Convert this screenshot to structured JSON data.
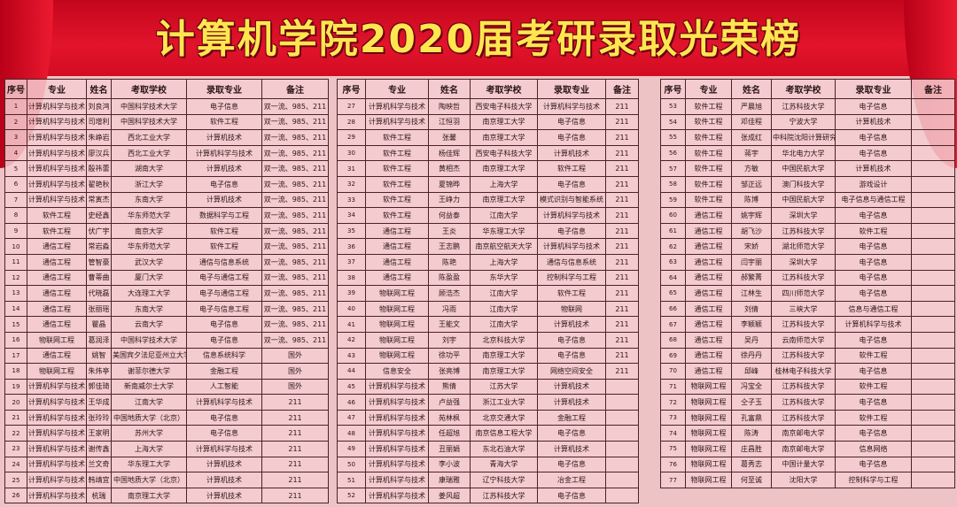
{
  "title": "计算机学院2020届考研录取光荣榜",
  "headers": [
    "序号",
    "专业",
    "姓名",
    "考取学校",
    "录取专业",
    "备注"
  ],
  "colors": {
    "banner": "#e2142c",
    "title": "#ffe650",
    "background": "#eec3c6"
  },
  "tables": [
    [
      [
        "1",
        "计算机科学与技术",
        "刘良鸿",
        "中国科学技术大学",
        "电子信息",
        "双一流、985、211"
      ],
      [
        "2",
        "计算机科学与技术",
        "司增利",
        "中国科学技术大学",
        "软件工程",
        "双一流、985、211"
      ],
      [
        "3",
        "计算机科学与技术",
        "朱峥岩",
        "西北工业大学",
        "计算机技术",
        "双一流、985、211"
      ],
      [
        "4",
        "计算机科学与技术",
        "廖汉兵",
        "西北工业大学",
        "计算机科学与技术",
        "双一流、985、211"
      ],
      [
        "5",
        "计算机科学与技术",
        "殷祎蕾",
        "湖南大学",
        "计算机技术",
        "双一流、985、211"
      ],
      [
        "6",
        "计算机科学与技术",
        "翟艳秋",
        "浙江大学",
        "电子信息",
        "双一流、985、211"
      ],
      [
        "7",
        "计算机科学与技术",
        "常寅杰",
        "东南大学",
        "计算机技术",
        "双一流、985、211"
      ],
      [
        "8",
        "软件工程",
        "史经鑫",
        "华东师范大学",
        "数据科学与工程",
        "双一流、985、211"
      ],
      [
        "9",
        "软件工程",
        "伏广宇",
        "南京大学",
        "软件工程",
        "双一流、985、211"
      ],
      [
        "10",
        "通信工程",
        "常岩淼",
        "华东师范大学",
        "软件工程",
        "双一流、985、211"
      ],
      [
        "11",
        "通信工程",
        "管智豪",
        "武汉大学",
        "通信与信息系统",
        "双一流、985、211"
      ],
      [
        "12",
        "通信工程",
        "曹蒂曲",
        "厦门大学",
        "电子与通信工程",
        "双一流、985、211"
      ],
      [
        "13",
        "通信工程",
        "代晓磊",
        "大连理工大学",
        "电子与通信工程",
        "双一流、985、211"
      ],
      [
        "14",
        "通信工程",
        "张丽瑶",
        "东南大学",
        "电子与信息工程",
        "双一流、985、211"
      ],
      [
        "15",
        "通信工程",
        "瞿晶",
        "云南大学",
        "电子信息",
        "双一流、985、211"
      ],
      [
        "16",
        "物联网工程",
        "葛润泽",
        "中国科学技术大学",
        "电子信息",
        "双一流、985、211"
      ],
      [
        "17",
        "通信工程",
        "姚智",
        "美国宾夕法尼亚州立大学",
        "信息系统科学",
        "国外"
      ],
      [
        "18",
        "物联网工程",
        "朱炜亭",
        "谢菲尔德大学",
        "金融工程",
        "国外"
      ],
      [
        "19",
        "计算机科学与技术",
        "郭佳琦",
        "新南威尔士大学",
        "人工智能",
        "国外"
      ],
      [
        "20",
        "计算机科学与技术",
        "王华成",
        "江南大学",
        "计算机科学与技术",
        "211"
      ],
      [
        "21",
        "计算机科学与技术",
        "张玲玲",
        "中国地质大学（北京）",
        "电子信息",
        "211"
      ],
      [
        "22",
        "计算机科学与技术",
        "王家明",
        "苏州大学",
        "电子信息",
        "211"
      ],
      [
        "23",
        "计算机科学与技术",
        "谢传鑫",
        "上海大学",
        "计算机科学与技术",
        "211"
      ],
      [
        "24",
        "计算机科学与技术",
        "兰文奇",
        "华东理工大学",
        "计算机技术",
        "211"
      ],
      [
        "25",
        "计算机科学与技术",
        "韩靖宜",
        "中国地质大学（北京）",
        "计算机技术",
        "211"
      ],
      [
        "26",
        "计算机科学与技术",
        "杭瑞",
        "南京理工大学",
        "计算机技术",
        "211"
      ]
    ],
    [
      [
        "27",
        "计算机科学与技术",
        "陶映哲",
        "西安电子科技大学",
        "计算机科学与技术",
        "211"
      ],
      [
        "28",
        "计算机科学与技术",
        "江恒羽",
        "南京理工大学",
        "电子信息",
        "211"
      ],
      [
        "29",
        "软件工程",
        "张馨",
        "南京理工大学",
        "电子信息",
        "211"
      ],
      [
        "30",
        "软件工程",
        "杨佳辉",
        "西安电子科技大学",
        "计算机技术",
        "211"
      ],
      [
        "31",
        "软件工程",
        "黄相杰",
        "南京理工大学",
        "软件工程",
        "211"
      ],
      [
        "32",
        "软件工程",
        "夏锦晔",
        "上海大学",
        "电子信息",
        "211"
      ],
      [
        "33",
        "软件工程",
        "王峥力",
        "南京理工大学",
        "模式识别与智能系统",
        "211"
      ],
      [
        "34",
        "软件工程",
        "何益泰",
        "江南大学",
        "计算机科学与技术",
        "211"
      ],
      [
        "35",
        "通信工程",
        "王炎",
        "华东理工大学",
        "电子信息",
        "211"
      ],
      [
        "36",
        "通信工程",
        "王志鹏",
        "南京航空航天大学",
        "计算机科学与技术",
        "211"
      ],
      [
        "37",
        "通信工程",
        "陈艳",
        "上海大学",
        "通信与信息系统",
        "211"
      ],
      [
        "38",
        "通信工程",
        "陈盈盈",
        "东华大学",
        "控制科学与工程",
        "211"
      ],
      [
        "39",
        "物联网工程",
        "顾浩杰",
        "江南大学",
        "软件工程",
        "211"
      ],
      [
        "40",
        "物联网工程",
        "冯雨",
        "江南大学",
        "物联网",
        "211"
      ],
      [
        "41",
        "物联网工程",
        "王能文",
        "江南大学",
        "计算机技术",
        "211"
      ],
      [
        "42",
        "物联网工程",
        "刘宇",
        "北京科技大学",
        "电子信息",
        "211"
      ],
      [
        "43",
        "物联网工程",
        "徐功平",
        "南京理工大学",
        "电子信息",
        "211"
      ],
      [
        "44",
        "信息安全",
        "张亮博",
        "南京理工大学",
        "网络空间安全",
        "211"
      ],
      [
        "45",
        "计算机科学与技术",
        "熊倩",
        "江苏大学",
        "计算机技术",
        ""
      ],
      [
        "46",
        "计算机科学与技术",
        "卢益强",
        "浙江工业大学",
        "计算机技术",
        ""
      ],
      [
        "47",
        "计算机科学与技术",
        "苑林枫",
        "北京交通大学",
        "金融工程",
        ""
      ],
      [
        "48",
        "计算机科学与技术",
        "任超旭",
        "南京信息工程大学",
        "电子信息",
        ""
      ],
      [
        "49",
        "计算机科学与技术",
        "丑丽娟",
        "东北石油大学",
        "计算机技术",
        ""
      ],
      [
        "50",
        "计算机科学与技术",
        "李小波",
        "青海大学",
        "电子信息",
        ""
      ],
      [
        "51",
        "计算机科学与技术",
        "康瑞雅",
        "辽宁科技大学",
        "冶金工程",
        ""
      ],
      [
        "52",
        "计算机科学与技术",
        "姜风超",
        "江苏科技大学",
        "电子信息",
        ""
      ]
    ],
    [
      [
        "53",
        "软件工程",
        "严晨旭",
        "江苏科技大学",
        "电子信息",
        ""
      ],
      [
        "54",
        "软件工程",
        "邓佳程",
        "宁波大学",
        "计算机技术",
        ""
      ],
      [
        "55",
        "软件工程",
        "张成红",
        "中科院沈阳计算研究所",
        "电子信息",
        ""
      ],
      [
        "56",
        "软件工程",
        "蒋宇",
        "华北电力大学",
        "电子信息",
        ""
      ],
      [
        "57",
        "软件工程",
        "方敏",
        "中国民航大学",
        "计算机技术",
        ""
      ],
      [
        "58",
        "软件工程",
        "邹正远",
        "澳门科技大学",
        "游戏设计",
        ""
      ],
      [
        "59",
        "软件工程",
        "陈博",
        "中国民航大学",
        "电子信息与通信工程",
        ""
      ],
      [
        "60",
        "通信工程",
        "姚宇辉",
        "深圳大学",
        "电子信息",
        ""
      ],
      [
        "61",
        "通信工程",
        "胡飞沙",
        "江苏科技大学",
        "软件工程",
        ""
      ],
      [
        "62",
        "通信工程",
        "宋娇",
        "湖北师范大学",
        "电子信息",
        ""
      ],
      [
        "63",
        "通信工程",
        "闫宇丽",
        "深圳大学",
        "电子信息",
        ""
      ],
      [
        "64",
        "通信工程",
        "郝繁菁",
        "江苏科技大学",
        "电子信息",
        ""
      ],
      [
        "65",
        "通信工程",
        "江林生",
        "四川师范大学",
        "电子信息",
        ""
      ],
      [
        "66",
        "通信工程",
        "刘倩",
        "三峡大学",
        "信息与通信工程",
        ""
      ],
      [
        "67",
        "通信工程",
        "李颖颖",
        "江苏科技大学",
        "计算机科学与技术",
        ""
      ],
      [
        "68",
        "通信工程",
        "吴丹",
        "云南师范大学",
        "电子信息",
        ""
      ],
      [
        "69",
        "通信工程",
        "徐丹丹",
        "江苏科技大学",
        "软件工程",
        ""
      ],
      [
        "70",
        "通信工程",
        "邱峰",
        "桂林电子科技大学",
        "电子信息",
        ""
      ],
      [
        "71",
        "物联网工程",
        "冯宝全",
        "江苏科技大学",
        "软件工程",
        ""
      ],
      [
        "72",
        "物联网工程",
        "仝子玉",
        "江苏科技大学",
        "电子信息",
        ""
      ],
      [
        "73",
        "物联网工程",
        "孔富鼎",
        "江苏科技大学",
        "软件工程",
        ""
      ],
      [
        "74",
        "物联网工程",
        "陈涛",
        "南京邮电大学",
        "电子信息",
        ""
      ],
      [
        "75",
        "物联网工程",
        "庄昌胜",
        "南京邮电大学",
        "信息网络",
        ""
      ],
      [
        "76",
        "物联网工程",
        "葛秀志",
        "中国计量大学",
        "电子信息",
        ""
      ],
      [
        "77",
        "物联网工程",
        "何至诚",
        "沈阳大学",
        "控制科学与工程",
        ""
      ]
    ]
  ]
}
